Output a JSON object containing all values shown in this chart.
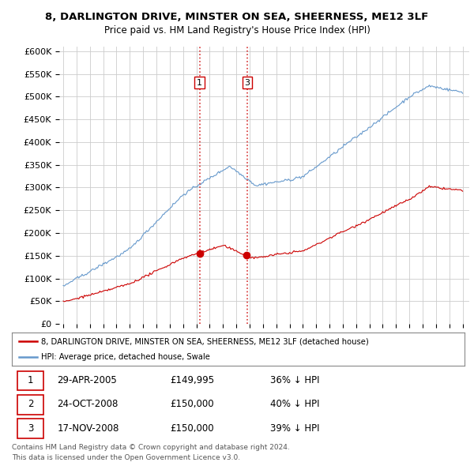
{
  "title": "8, DARLINGTON DRIVE, MINSTER ON SEA, SHEERNESS, ME12 3LF",
  "subtitle": "Price paid vs. HM Land Registry's House Price Index (HPI)",
  "ylabel_ticks": [
    "£0",
    "£50K",
    "£100K",
    "£150K",
    "£200K",
    "£250K",
    "£300K",
    "£350K",
    "£400K",
    "£450K",
    "£500K",
    "£550K",
    "£600K"
  ],
  "ytick_values": [
    0,
    50000,
    100000,
    150000,
    200000,
    250000,
    300000,
    350000,
    400000,
    450000,
    500000,
    550000,
    600000
  ],
  "legend_line1": "8, DARLINGTON DRIVE, MINSTER ON SEA, SHEERNESS, ME12 3LF (detached house)",
  "legend_line2": "HPI: Average price, detached house, Swale",
  "transactions": [
    {
      "id": 1,
      "date": "29-APR-2005",
      "price": 149995,
      "price_str": "£149,995",
      "pct": "36%",
      "dir": "↓"
    },
    {
      "id": 2,
      "date": "24-OCT-2008",
      "price": 150000,
      "price_str": "£150,000",
      "pct": "40%",
      "dir": "↓"
    },
    {
      "id": 3,
      "date": "17-NOV-2008",
      "price": 150000,
      "price_str": "£150,000",
      "pct": "39%",
      "dir": "↓"
    }
  ],
  "footnote1": "Contains HM Land Registry data © Crown copyright and database right 2024.",
  "footnote2": "This data is licensed under the Open Government Licence v3.0.",
  "line_color_red": "#cc0000",
  "line_color_blue": "#6699cc",
  "vline_color": "#cc0000",
  "background_color": "#ffffff",
  "grid_color": "#cccccc",
  "transaction_marker_color": "#cc0000",
  "transaction_label_color": "#000000",
  "xlim_start": 1994.7,
  "xlim_end": 2025.5,
  "ylim_min": 0,
  "ylim_max": 610000
}
